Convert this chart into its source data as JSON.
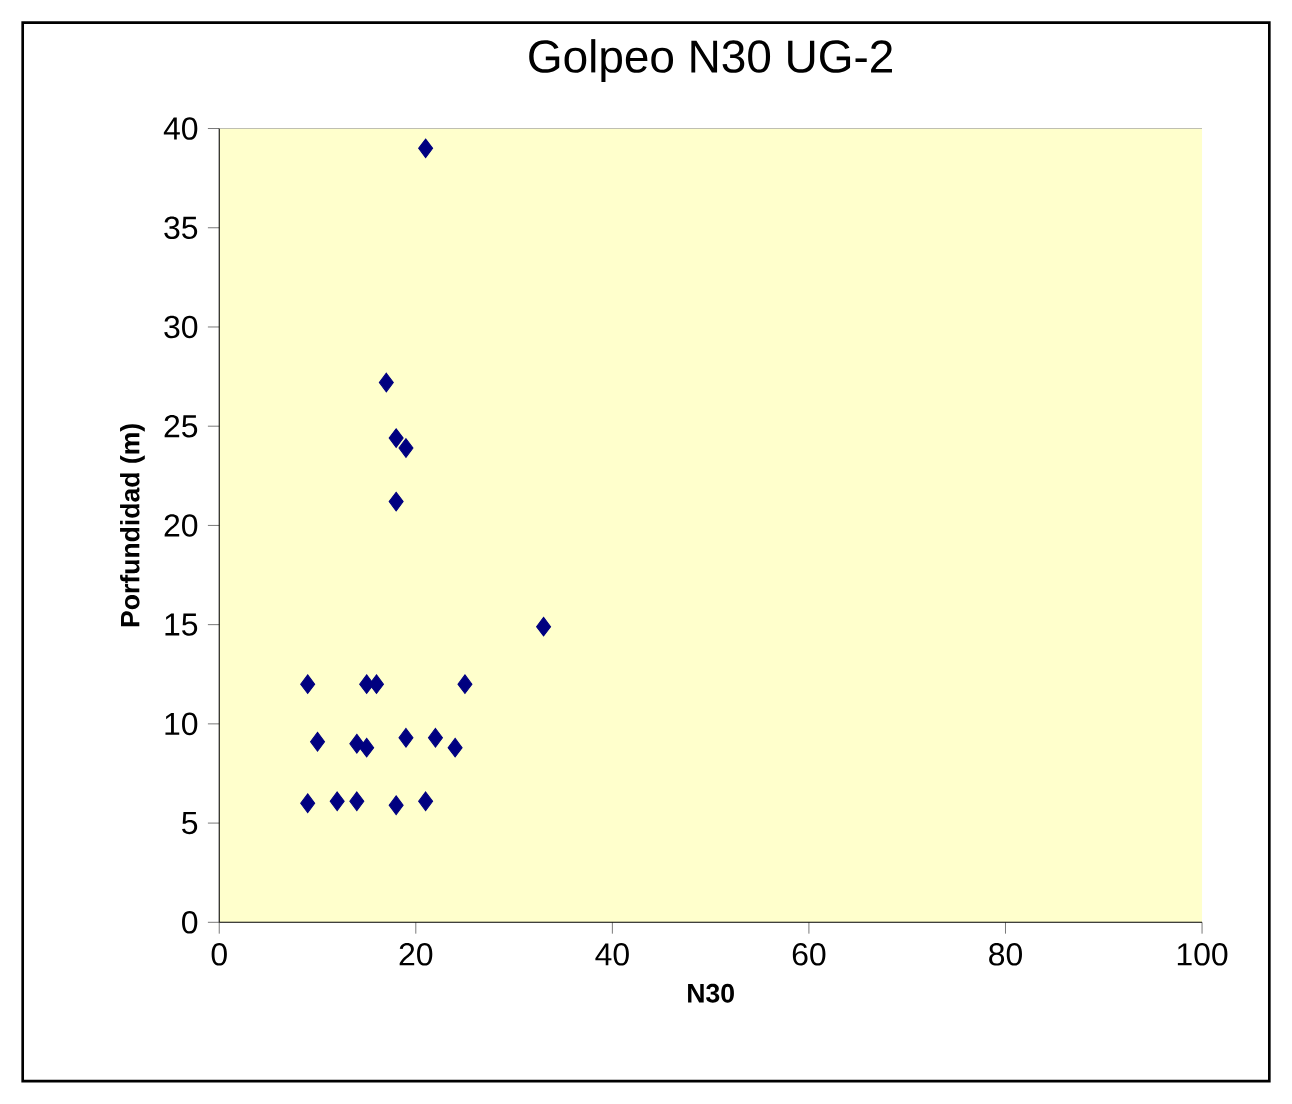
{
  "chart_data": {
    "type": "scatter",
    "title": "Golpeo N30 UG-2",
    "xlabel": "N30",
    "ylabel": "Porfundidad (m)",
    "x": [
      9,
      12,
      14,
      18,
      21,
      10,
      14,
      15,
      19,
      22,
      24,
      9,
      15,
      16,
      25,
      33,
      18,
      18,
      19,
      17,
      21
    ],
    "values": [
      6,
      6.1,
      6.1,
      5.9,
      6.1,
      9.1,
      9.0,
      8.8,
      9.3,
      9.3,
      8.8,
      12,
      12,
      12,
      12,
      14.9,
      21.2,
      24.4,
      23.9,
      27.2,
      39
    ],
    "color": "#000080",
    "marker": "diamond",
    "xlim": [
      0,
      100
    ],
    "xticks": [
      0,
      20,
      40,
      60,
      80,
      100
    ],
    "ylim": [
      0,
      40
    ],
    "yticks": [
      0,
      5,
      10,
      15,
      20,
      25,
      30,
      35,
      40
    ],
    "grid": false
  }
}
